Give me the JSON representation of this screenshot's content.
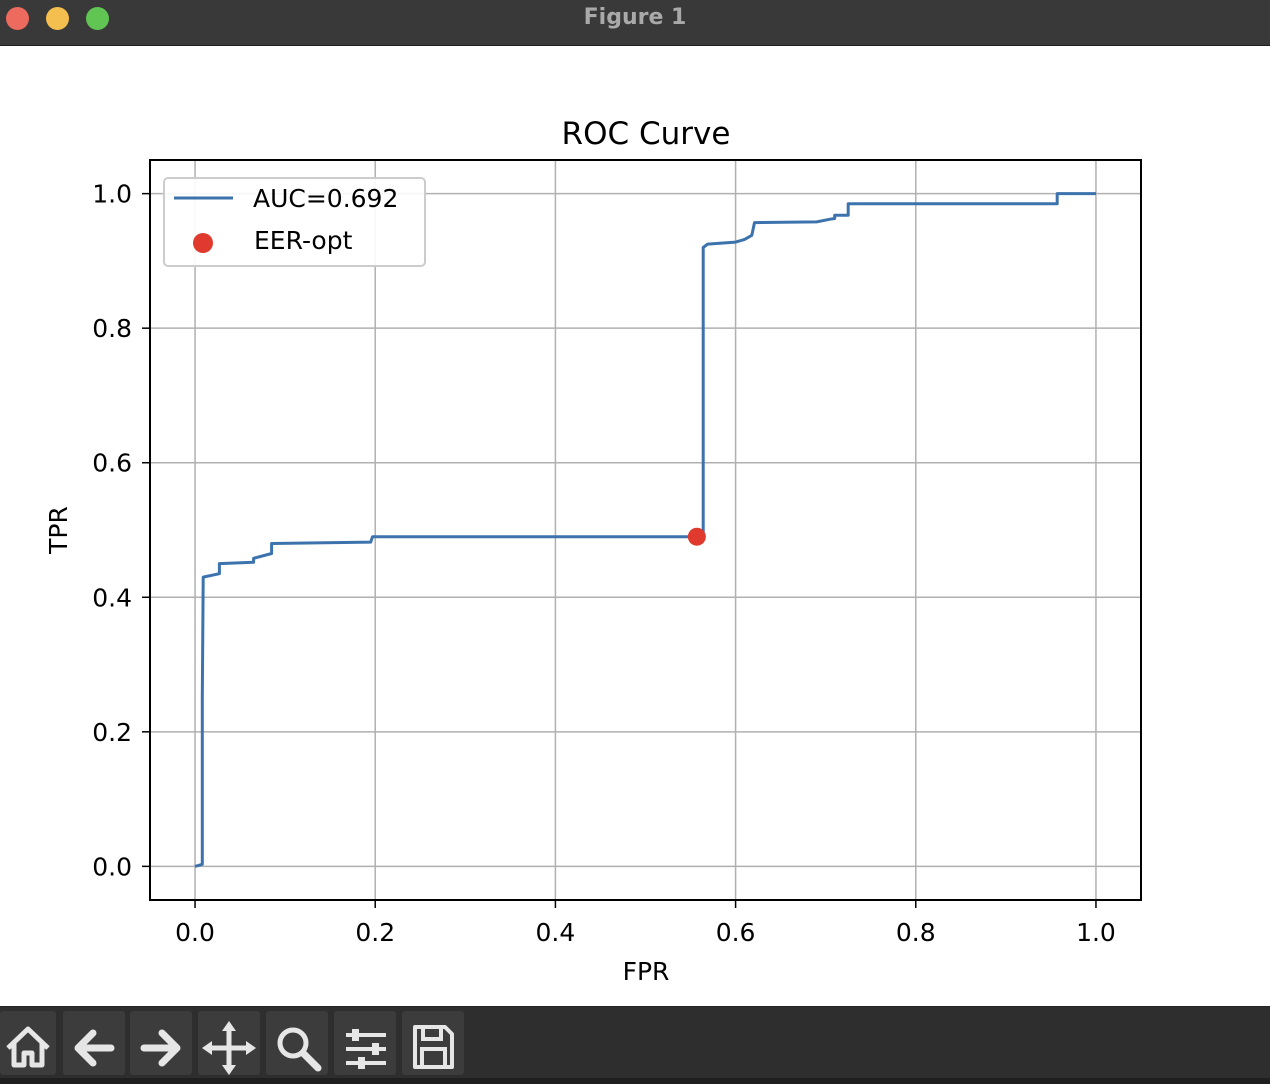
{
  "window": {
    "title": "Figure 1"
  },
  "toolbar": {
    "buttons": [
      {
        "icon": "home-icon"
      },
      {
        "icon": "back-icon"
      },
      {
        "icon": "forward-icon"
      },
      {
        "icon": "pan-icon"
      },
      {
        "icon": "zoom-icon"
      },
      {
        "icon": "configure-subplots-icon"
      },
      {
        "icon": "save-icon"
      }
    ]
  },
  "colors": {
    "series": "#3d73ad",
    "marker": "#e03a2e",
    "grid": "#b0b0b0"
  },
  "chart_data": {
    "type": "line",
    "title": "ROC Curve",
    "xlabel": "FPR",
    "ylabel": "TPR",
    "xlim": [
      -0.05,
      1.05
    ],
    "ylim": [
      -0.05,
      1.05
    ],
    "xticks": [
      "0.0",
      "0.2",
      "0.4",
      "0.6",
      "0.8",
      "1.0"
    ],
    "yticks": [
      "0.0",
      "0.2",
      "0.4",
      "0.6",
      "0.8",
      "1.0"
    ],
    "grid": true,
    "legend": {
      "position": "top-left",
      "line_label": "AUC=0.692",
      "point_label": "EER-opt"
    },
    "series": [
      {
        "name": "AUC=0.692",
        "x": [
          0.0,
          0.008,
          0.008,
          0.009,
          0.009,
          0.027,
          0.027,
          0.065,
          0.065,
          0.085,
          0.085,
          0.195,
          0.197,
          0.564,
          0.564,
          0.569,
          0.6,
          0.61,
          0.618,
          0.621,
          0.69,
          0.705,
          0.71,
          0.71,
          0.725,
          0.725,
          0.957,
          0.957,
          1.0
        ],
        "y": [
          0.0,
          0.003,
          0.25,
          0.43,
          0.43,
          0.435,
          0.45,
          0.452,
          0.458,
          0.465,
          0.48,
          0.482,
          0.49,
          0.49,
          0.92,
          0.925,
          0.928,
          0.932,
          0.938,
          0.957,
          0.958,
          0.962,
          0.963,
          0.968,
          0.968,
          0.985,
          0.985,
          1.0,
          1.0
        ]
      },
      {
        "name": "EER-opt",
        "type": "scatter",
        "x": [
          0.557
        ],
        "y": [
          0.49
        ]
      }
    ]
  }
}
